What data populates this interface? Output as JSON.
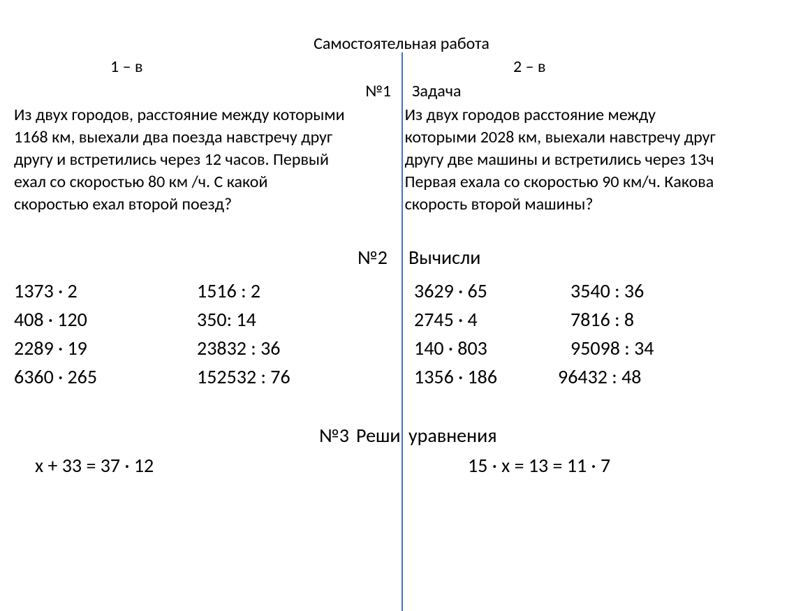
{
  "title": "Самостоятельная работа",
  "variants": {
    "left": "1 – в",
    "right": "2 – в"
  },
  "task1": {
    "num": "№1",
    "label": "Задача",
    "left_lines": [
      "Из двух городов, расстояние между которыми",
      "1168 км, выехали два поезда навстречу друг",
      "другу и встретились через 12 часов. Первый",
      "ехал со скоростью 80 км /ч. С какой",
      " скоростью ехал второй поезд?"
    ],
    "right_lines": [
      "Из двух городов расстояние между",
      "которыми 2028 км, выехали навстречу друг",
      "другу две машины и встретились через  13ч",
      "Первая ехала со скоростью 90 км/ч. Какова",
      " скорость второй машины?"
    ]
  },
  "task2": {
    "num": "№2",
    "label": "Вычисли",
    "left_col1": [
      "1373 · 2",
      "408 · 120",
      "2289 · 19",
      "6360 · 265"
    ],
    "left_col2": [
      "1516 : 2",
      "350: 14",
      "23832 : 36",
      "152532 : 76"
    ],
    "right_col1": [
      "3629 · 65",
      "2745 · 4",
      "140 · 803",
      "1356 · 186"
    ],
    "right_col2": [
      "3540 : 36",
      "7816 : 8",
      "95098 : 34",
      "96432 : 48"
    ]
  },
  "task3": {
    "num": "№3",
    "mid": "Реши",
    "label": "уравнения",
    "left_eq": "х + 33 = 37 · 12",
    "right_eq": "15 · х = 13 = 11 · 7"
  },
  "colors": {
    "divider": "#4472c4",
    "background": "#ffffff",
    "text": "#000000"
  },
  "fonts": {
    "body_size": 24,
    "large_size": 28,
    "family": "Calibri"
  }
}
